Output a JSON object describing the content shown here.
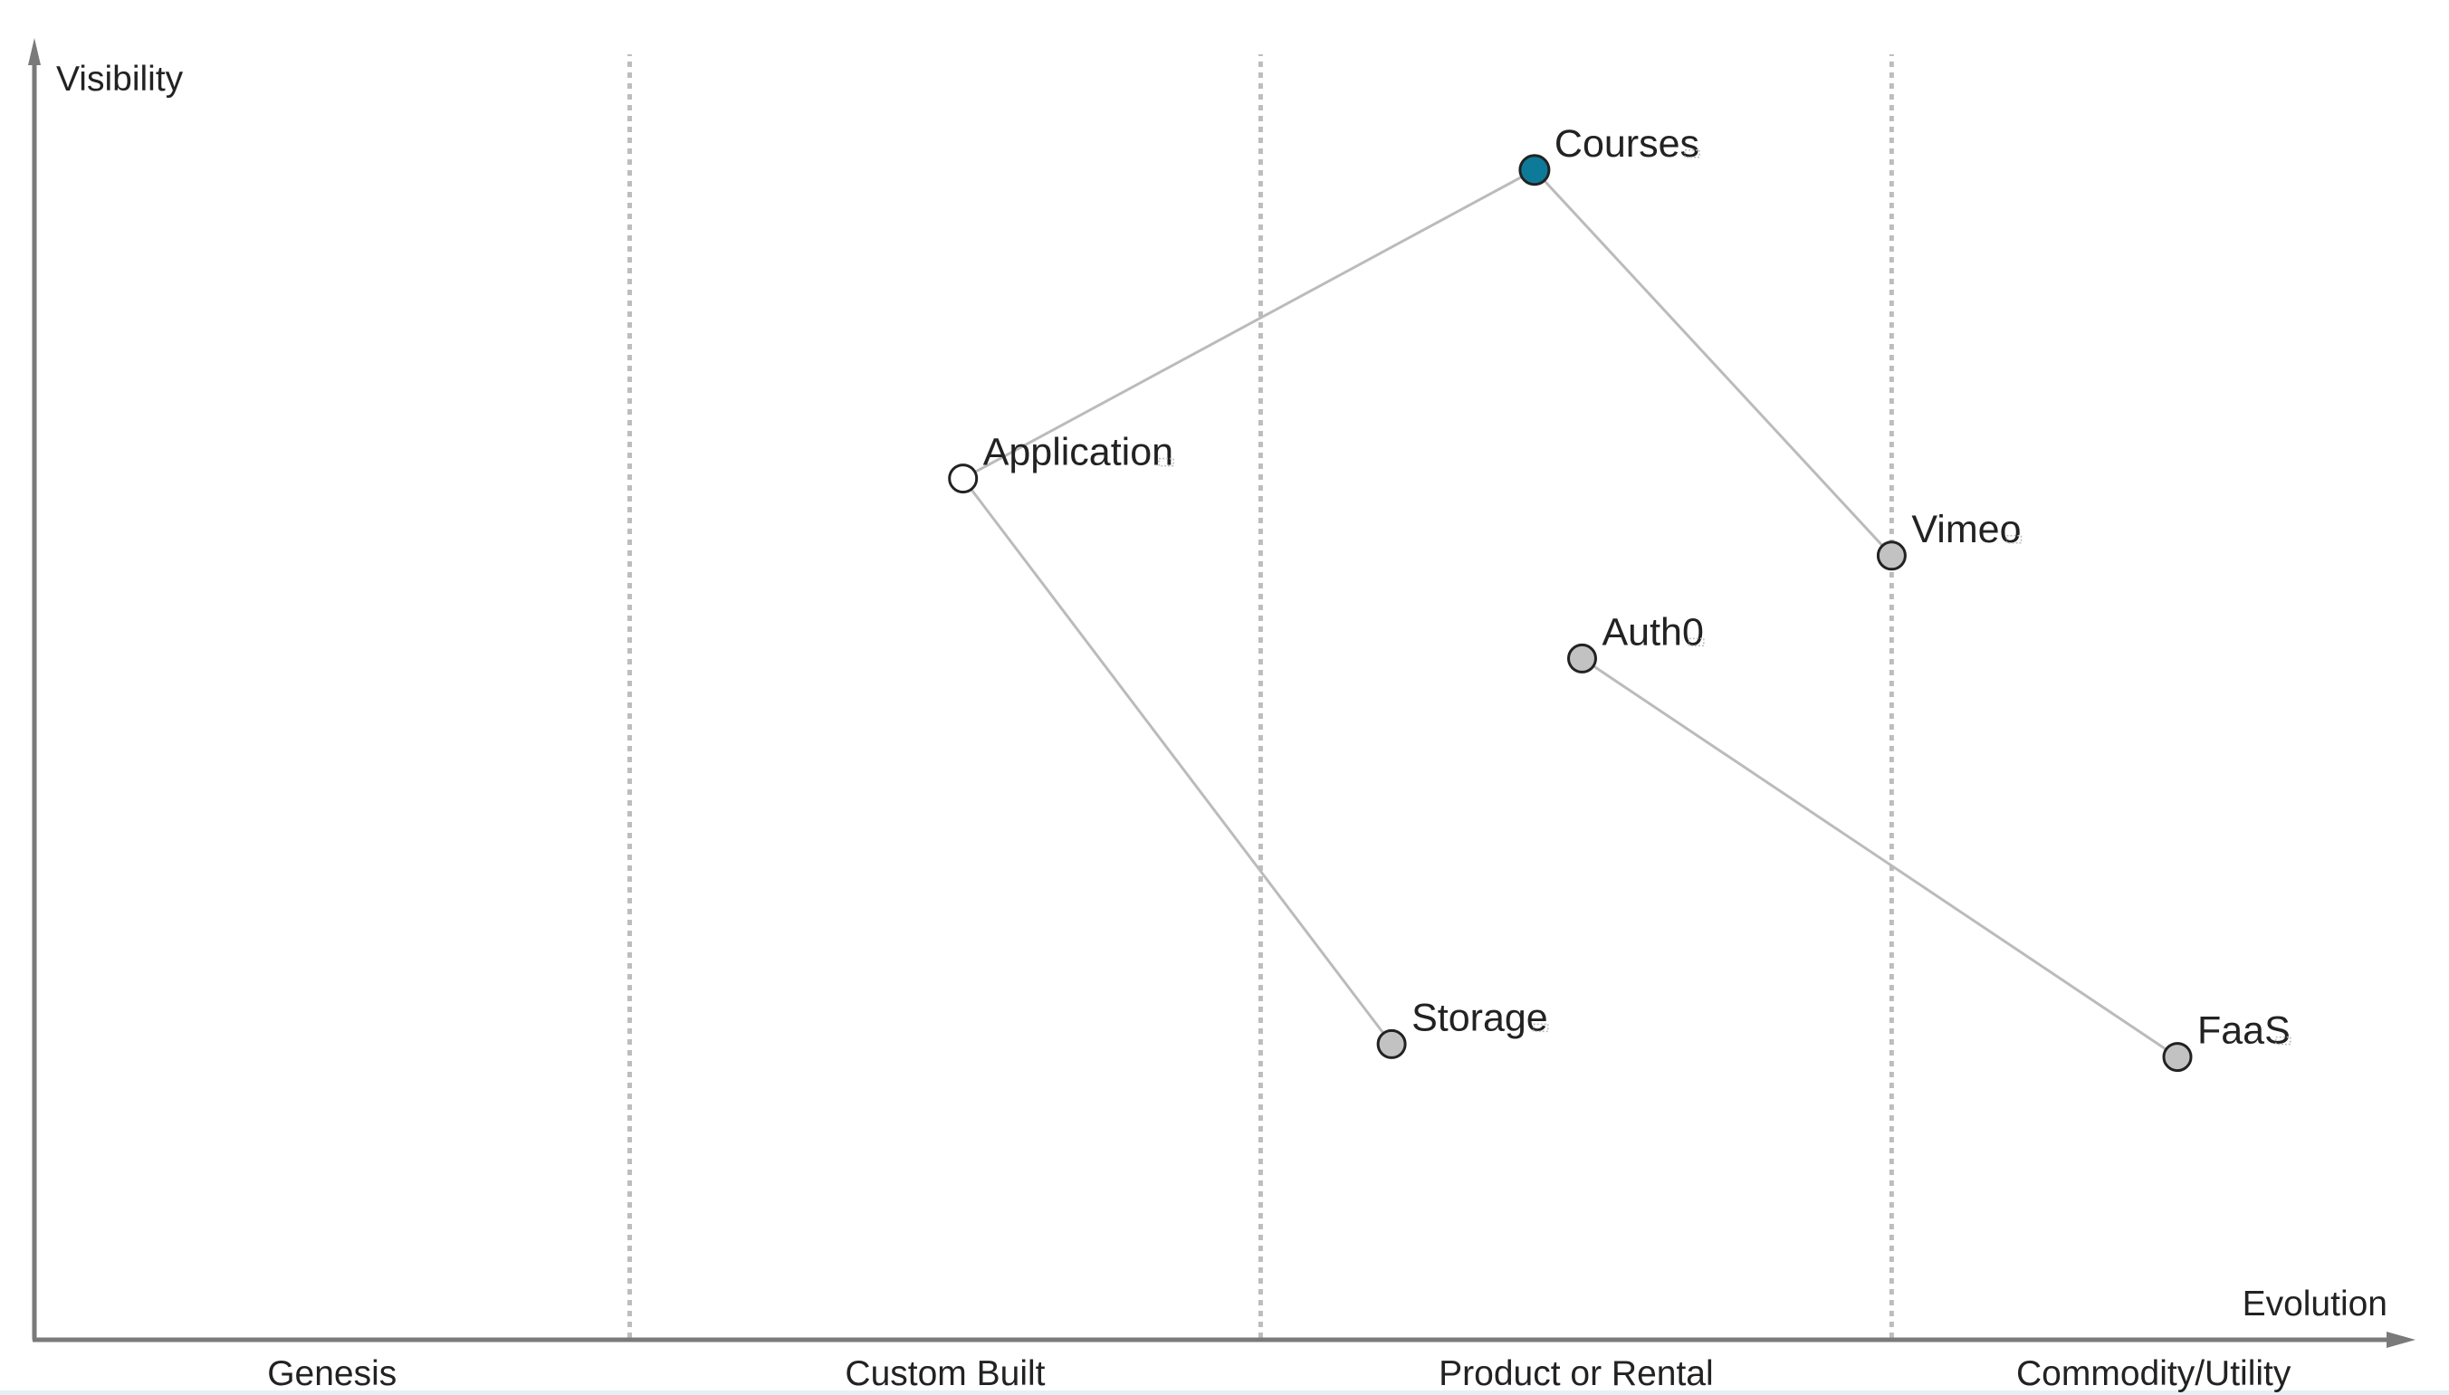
{
  "map": {
    "y_axis_label": "Visibility",
    "x_axis_label": "Evolution",
    "stages": [
      "Genesis",
      "Custom Built",
      "Product or Rental",
      "Commodity/Utility"
    ],
    "stage_boundaries": [
      0.25,
      0.515,
      0.78
    ],
    "components": [
      {
        "id": "courses",
        "label": "Courses",
        "visibility": 0.91,
        "evolution": 0.63,
        "style": "anchor"
      },
      {
        "id": "application",
        "label": "Application",
        "visibility": 0.67,
        "evolution": 0.39,
        "style": "open"
      },
      {
        "id": "vimeo",
        "label": "Vimeo",
        "visibility": 0.61,
        "evolution": 0.78,
        "style": "filled"
      },
      {
        "id": "auth0",
        "label": "Auth0",
        "visibility": 0.53,
        "evolution": 0.65,
        "style": "filled"
      },
      {
        "id": "storage",
        "label": "Storage",
        "visibility": 0.23,
        "evolution": 0.57,
        "style": "filled"
      },
      {
        "id": "faas",
        "label": "FaaS",
        "visibility": 0.22,
        "evolution": 0.9,
        "style": "filled"
      }
    ],
    "links": [
      {
        "from": "courses",
        "to": "application"
      },
      {
        "from": "courses",
        "to": "vimeo"
      },
      {
        "from": "application",
        "to": "storage"
      },
      {
        "from": "auth0",
        "to": "faas"
      }
    ],
    "colors": {
      "anchor": "#0e7a99",
      "filled": "#c2c2c2",
      "open": "#ffffff",
      "axis": "#7a7a7a",
      "link": "#bbbbbb",
      "divider": "#bdbdbd",
      "text": "#222222"
    }
  }
}
